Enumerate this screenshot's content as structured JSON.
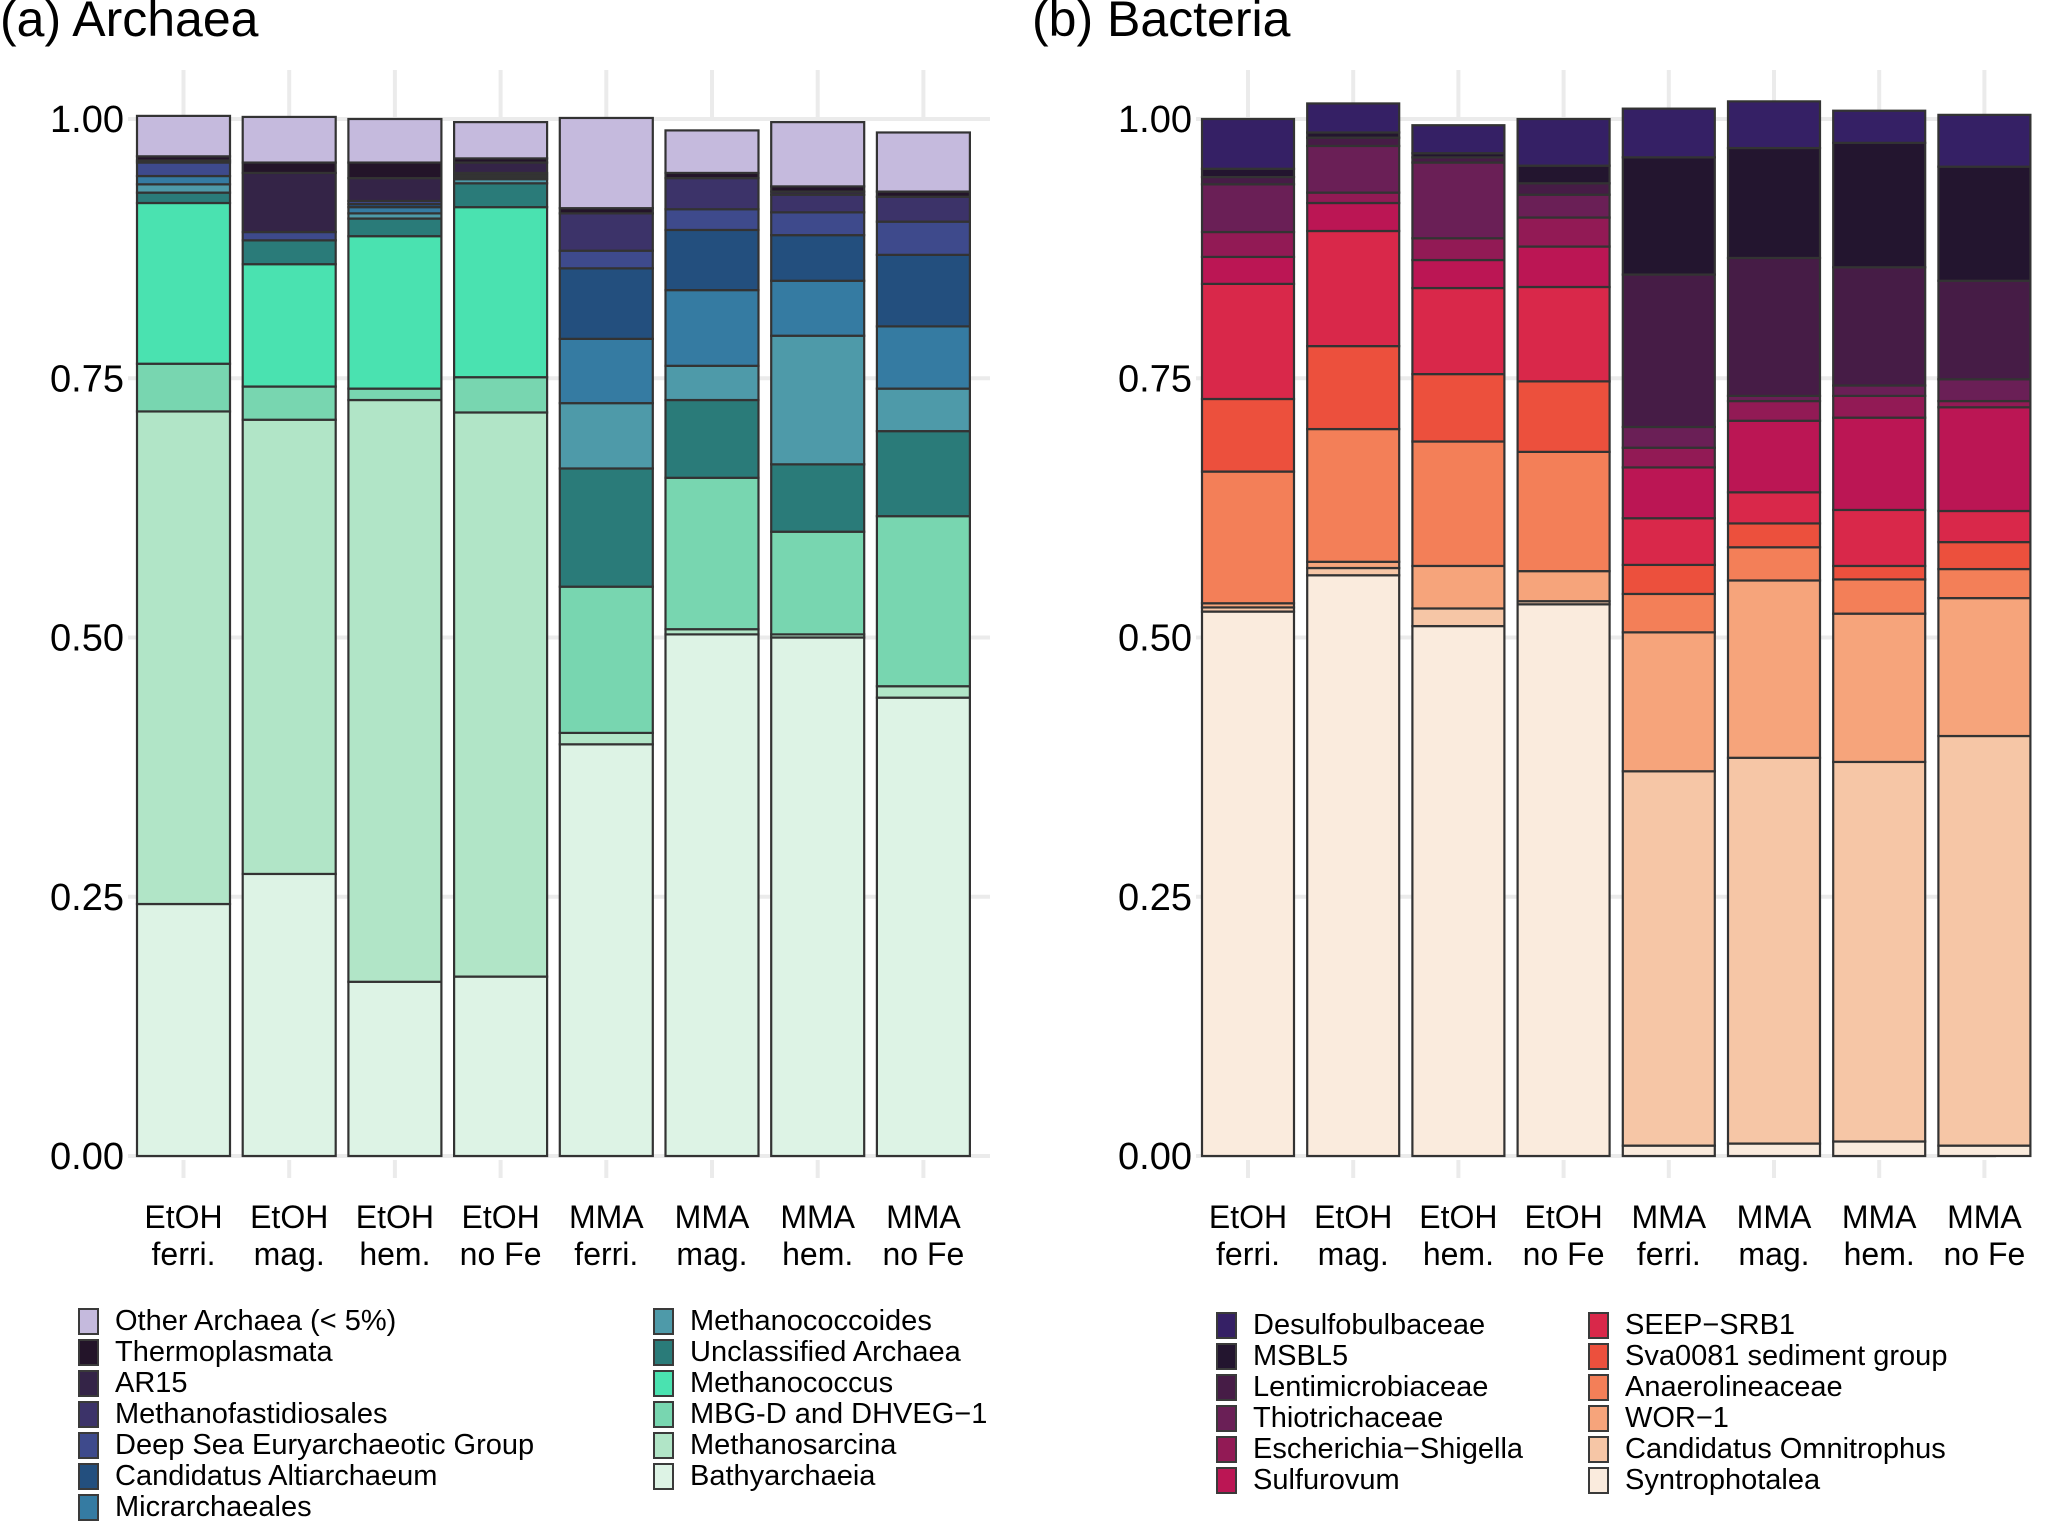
{
  "chart_data": [
    {
      "type": "bar",
      "stacked": true,
      "title": "(a) Archaea",
      "xlabel": "",
      "ylabel": "",
      "ylim": [
        0,
        1
      ],
      "yticks": [
        "0.00",
        "0.25",
        "0.50",
        "0.75",
        "1.00"
      ],
      "grid": true,
      "legend_position": "bottom",
      "categories": [
        "EtOH\nferri.",
        "EtOH\nmag.",
        "EtOH\nhem.",
        "EtOH\nno Fe",
        "MMA\nferri.",
        "MMA\nmag.",
        "MMA\nhem.",
        "MMA\nno Fe"
      ],
      "category_lines": [
        [
          "EtOH",
          "ferri."
        ],
        [
          "EtOH",
          "mag."
        ],
        [
          "EtOH",
          "hem."
        ],
        [
          "EtOH",
          "no Fe"
        ],
        [
          "MMA",
          "ferri."
        ],
        [
          "MMA",
          "mag."
        ],
        [
          "MMA",
          "hem."
        ],
        [
          "MMA",
          "no Fe"
        ]
      ],
      "series": [
        {
          "name": "Bathyarchaeia",
          "color": "#ddf3e5",
          "values": [
            0.243,
            0.272,
            0.168,
            0.173,
            0.397,
            0.503,
            0.5,
            0.442
          ]
        },
        {
          "name": "Methanosarcina",
          "color": "#b1e5c7",
          "values": [
            0.475,
            0.438,
            0.561,
            0.544,
            0.011,
            0.005,
            0.003,
            0.011
          ]
        },
        {
          "name": "MBG-D and DHVEG−1",
          "color": "#78d6b0",
          "values": [
            0.046,
            0.032,
            0.011,
            0.034,
            0.141,
            0.146,
            0.099,
            0.164
          ]
        },
        {
          "name": "Methanococcus",
          "color": "#4ae2b0",
          "values": [
            0.155,
            0.118,
            0.147,
            0.164,
            0.0,
            0.0,
            0.0,
            0.0
          ]
        },
        {
          "name": "Unclassified Archaea",
          "color": "#2a7b79",
          "values": [
            0.01,
            0.023,
            0.017,
            0.023,
            0.114,
            0.075,
            0.065,
            0.082
          ]
        },
        {
          "name": "Methanococcoides",
          "color": "#4e9aa9",
          "values": [
            0.008,
            0.0,
            0.005,
            0.004,
            0.063,
            0.033,
            0.124,
            0.041
          ]
        },
        {
          "name": "Micrarchaeales",
          "color": "#357ba2",
          "values": [
            0.008,
            0.0,
            0.006,
            0.002,
            0.062,
            0.073,
            0.053,
            0.06
          ]
        },
        {
          "name": "Candidatus Altiarchaeum",
          "color": "#234f7e",
          "values": [
            0.0,
            0.0,
            0.003,
            0.002,
            0.068,
            0.058,
            0.044,
            0.069
          ]
        },
        {
          "name": "Deep Sea Euryarchaeotic Group",
          "color": "#3e4a8c",
          "values": [
            0.013,
            0.008,
            0.003,
            0.002,
            0.017,
            0.02,
            0.022,
            0.032
          ]
        },
        {
          "name": "Methanofastidiosales",
          "color": "#3c3369",
          "values": [
            0.002,
            0.0,
            0.0,
            0.0,
            0.036,
            0.03,
            0.017,
            0.024
          ]
        },
        {
          "name": "AR15",
          "color": "#342447",
          "values": [
            0.0,
            0.057,
            0.022,
            0.01,
            0.0,
            0.0,
            0.003,
            0.0
          ]
        },
        {
          "name": "Thermoplasmata",
          "color": "#231429",
          "values": [
            0.004,
            0.01,
            0.015,
            0.004,
            0.005,
            0.005,
            0.005,
            0.005
          ]
        },
        {
          "name": "Other Archaea (< 5%)",
          "color": "#c5badd",
          "values": [
            0.039,
            0.044,
            0.042,
            0.035,
            0.087,
            0.041,
            0.062,
            0.057
          ]
        }
      ]
    },
    {
      "type": "bar",
      "stacked": true,
      "title": "(b) Bacteria",
      "xlabel": "",
      "ylabel": "",
      "ylim": [
        0,
        1
      ],
      "yticks": [
        "0.00",
        "0.25",
        "0.50",
        "0.75",
        "1.00"
      ],
      "grid": true,
      "legend_position": "bottom",
      "categories": [
        "EtOH\nferri.",
        "EtOH\nmag.",
        "EtOH\nhem.",
        "EtOH\nno Fe",
        "MMA\nferri.",
        "MMA\nmag.",
        "MMA\nhem.",
        "MMA\nno Fe"
      ],
      "category_lines": [
        [
          "EtOH",
          "ferri."
        ],
        [
          "EtOH",
          "mag."
        ],
        [
          "EtOH",
          "hem."
        ],
        [
          "EtOH",
          "no Fe"
        ],
        [
          "MMA",
          "ferri."
        ],
        [
          "MMA",
          "mag."
        ],
        [
          "MMA",
          "hem."
        ],
        [
          "MMA",
          "no Fe"
        ]
      ],
      "series": [
        {
          "name": "Syntrophotalea",
          "color": "#faebdd",
          "values": [
            0.525,
            0.56,
            0.511,
            0.532,
            0.01,
            0.012,
            0.014,
            0.01
          ]
        },
        {
          "name": "Candidatus Omnitrophus",
          "color": "#f6c6a6",
          "values": [
            0.004,
            0.007,
            0.017,
            0.003,
            0.361,
            0.372,
            0.366,
            0.395
          ]
        },
        {
          "name": "WOR−1",
          "color": "#f6a47b",
          "values": [
            0.004,
            0.006,
            0.041,
            0.029,
            0.134,
            0.171,
            0.143,
            0.133
          ]
        },
        {
          "name": "Anaerolineaceae",
          "color": "#f37f58",
          "values": [
            0.127,
            0.128,
            0.12,
            0.115,
            0.037,
            0.032,
            0.033,
            0.028
          ]
        },
        {
          "name": "Sva0081 sediment group",
          "color": "#ec503d",
          "values": [
            0.07,
            0.08,
            0.065,
            0.068,
            0.028,
            0.023,
            0.013,
            0.026
          ]
        },
        {
          "name": "SEEP−SRB1",
          "color": "#d9284a",
          "values": [
            0.111,
            0.111,
            0.083,
            0.091,
            0.045,
            0.03,
            0.054,
            0.03
          ]
        },
        {
          "name": "Sulfurovum",
          "color": "#bb1654",
          "values": [
            0.026,
            0.027,
            0.027,
            0.039,
            0.049,
            0.069,
            0.089,
            0.1
          ]
        },
        {
          "name": "Escherichia−Shigella",
          "color": "#921a55",
          "values": [
            0.024,
            0.01,
            0.021,
            0.028,
            0.019,
            0.019,
            0.021,
            0.006
          ]
        },
        {
          "name": "Thiotrichaceae",
          "color": "#6a1f56",
          "values": [
            0.046,
            0.045,
            0.073,
            0.022,
            0.02,
            0.005,
            0.01,
            0.021
          ]
        },
        {
          "name": "Lentimicrobiaceae",
          "color": "#461c46",
          "values": [
            0.007,
            0.008,
            0.005,
            0.011,
            0.147,
            0.133,
            0.114,
            0.095
          ]
        },
        {
          "name": "MSBL5",
          "color": "#23152f",
          "values": [
            0.008,
            0.005,
            0.004,
            0.017,
            0.113,
            0.106,
            0.12,
            0.11
          ]
        },
        {
          "name": "Desulfobulbaceae",
          "color": "#352065",
          "values": [
            0.048,
            0.028,
            0.027,
            0.045,
            0.047,
            0.045,
            0.031,
            0.05
          ]
        }
      ]
    }
  ],
  "panels": {
    "archaea": {
      "title": "(a) Archaea"
    },
    "bacteria": {
      "title": "(b) Bacteria"
    }
  },
  "legends": {
    "archaea": {
      "col1": [
        "Other Archaea (< 5%)",
        "Thermoplasmata",
        "AR15",
        "Methanofastidiosales",
        "Deep Sea Euryarchaeotic Group",
        "Candidatus Altiarchaeum",
        "Micrarchaeales"
      ],
      "col2": [
        "Methanococcoides",
        "Unclassified Archaea",
        "Methanococcus",
        "MBG-D and DHVEG−1",
        "Methanosarcina",
        "Bathyarchaeia"
      ]
    },
    "bacteria": {
      "col1": [
        "Desulfobulbaceae",
        "MSBL5",
        "Lentimicrobiaceae",
        "Thiotrichaceae",
        "Escherichia−Shigella",
        "Sulfurovum"
      ],
      "col2": [
        "SEEP−SRB1",
        "Sva0081 sediment group",
        "Anaerolineaceae",
        "WOR−1",
        "Candidatus Omnitrophus",
        "Syntrophotalea"
      ]
    }
  }
}
